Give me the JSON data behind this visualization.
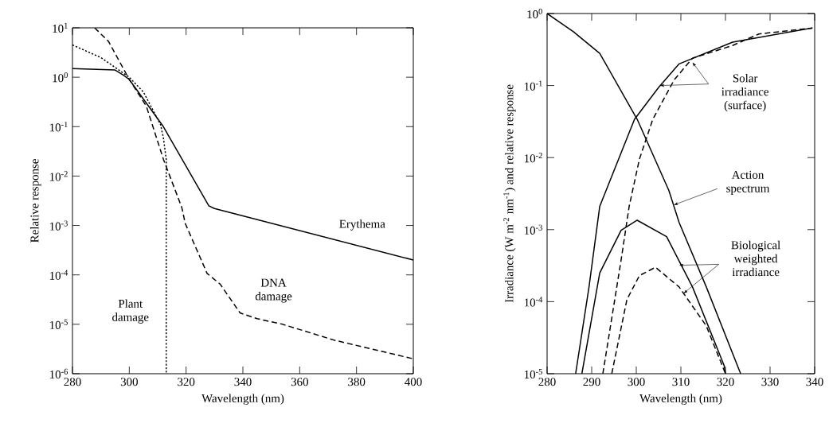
{
  "chart_data": [
    {
      "type": "line",
      "xlabel": "Wavelength (nm)",
      "ylabel": "Relative response",
      "log": "y",
      "xlim": [
        280,
        400
      ],
      "xticks": [
        280,
        300,
        320,
        340,
        360,
        380,
        400
      ],
      "ylim": [
        1e-06,
        10
      ],
      "yticks": [
        {
          "value": 10,
          "label": "10$^{1}$"
        },
        {
          "value": 1,
          "label": "10$^{0}$"
        },
        {
          "value": 0.1,
          "label": "10$^{-1}$"
        },
        {
          "value": 0.01,
          "label": "10$^{-2}$"
        },
        {
          "value": 0.001,
          "label": "10$^{-3}$"
        },
        {
          "value": 0.0001,
          "label": "10$^{-4}$"
        },
        {
          "value": 1e-05,
          "label": "10$^{-5}$"
        },
        {
          "value": 1e-06,
          "label": "10$^{-6}$"
        }
      ],
      "grid": false,
      "series": [
        {
          "color": "#000000",
          "line_style": "solid",
          "x": [
            280,
            295,
            298,
            300,
            312,
            328,
            330,
            400
          ],
          "values": [
            1.5,
            1.4,
            1.1,
            0.9,
            0.1,
            0.0025,
            0.0022,
            0.0002
          ]
        },
        {
          "color": "#000000",
          "line_style": "dotted",
          "x": [
            280,
            290,
            300,
            305,
            311,
            312,
            313,
            313
          ],
          "values": [
            4.5,
            2.5,
            1.0,
            0.5,
            0.11,
            0.06,
            0.022,
            1e-06
          ]
        },
        {
          "color": "#000000",
          "line_style": "dashed",
          "x": [
            287.8,
            292.7,
            300,
            306,
            312,
            318.5,
            319.7,
            327.4,
            332,
            339,
            345,
            354,
            372,
            400
          ],
          "values": [
            10,
            5.3,
            0.9,
            0.26,
            0.022,
            0.0023,
            0.0011,
            0.000107,
            6.5e-05,
            1.7e-05,
            1.3e-05,
            1e-05,
            4.8e-06,
            2e-06
          ]
        }
      ],
      "annotations": [
        "Erythema",
        "DNA damage",
        "Plant damage"
      ]
    },
    {
      "type": "line",
      "xlabel": "Wavelength (nm)",
      "ylabel": "Irradiance (W m$^{-2}$ nm$^{-1}$) and relative response",
      "log": "y",
      "xlim": [
        280,
        340
      ],
      "xticks": [
        280,
        290,
        300,
        310,
        320,
        330,
        340
      ],
      "ylim": [
        1e-05,
        1
      ],
      "yticks": [
        {
          "value": 1,
          "label": "10$^{0}$"
        },
        {
          "value": 0.1,
          "label": "10$^{-1}$"
        },
        {
          "value": 0.01,
          "label": "10$^{-2}$"
        },
        {
          "value": 0.001,
          "label": "10$^{-3}$"
        },
        {
          "value": 0.0001,
          "label": "10$^{-4}$"
        },
        {
          "value": 1e-05,
          "label": "10$^{-5}$"
        }
      ],
      "grid": false,
      "series": [
        {
          "color": "#000000",
          "line_style": "solid",
          "x": [
            280,
            285.9,
            291.8,
            300.2,
            307.3,
            309.6,
            315.7,
            323.4
          ],
          "values": [
            1.0,
            0.56,
            0.28,
            0.034,
            0.0035,
            0.00126,
            0.00016,
            1e-05
          ]
        },
        {
          "color": "#000000",
          "line_style": "solid",
          "x": [
            286.4,
            289.4,
            291.8,
            299.6,
            305,
            309.6,
            321.6,
            339.5
          ],
          "values": [
            1e-05,
            0.00016,
            0.0021,
            0.034,
            0.094,
            0.2,
            0.4,
            0.63
          ]
        },
        {
          "color": "#000000",
          "line_style": "dashed",
          "x": [
            292.5,
            296.6,
            298.4,
            300.7,
            303.7,
            308.5,
            312.6,
            321.6,
            327.5,
            339.5
          ],
          "values": [
            1e-05,
            0.00038,
            0.0021,
            0.0095,
            0.034,
            0.12,
            0.24,
            0.36,
            0.52,
            0.63
          ]
        },
        {
          "color": "#000000",
          "line_style": "solid",
          "x": [
            287.8,
            291.8,
            296.6,
            300.2,
            306.8,
            312.6,
            319.7,
            320
          ],
          "values": [
            1e-05,
            0.00025,
            0.00098,
            0.00135,
            0.0008,
            0.00016,
            1.3e-05,
            1e-05
          ]
        },
        {
          "color": "#000000",
          "line_style": "dashed",
          "x": [
            294.5,
            297.9,
            300.7,
            304.3,
            309.6,
            315.7,
            320
          ],
          "values": [
            1e-05,
            0.000107,
            0.00023,
            0.0003,
            0.00016,
            4.6e-05,
            1e-05
          ]
        }
      ],
      "annotations": [
        "Solar irradiance (surface)",
        {
          "text": "Action spectrum",
          "x": 308.4,
          "y": 0.0022
        },
        {
          "text": "Biological weighted irradiance",
          "x": 310.6,
          "y": 0.00013
        }
      ]
    }
  ]
}
